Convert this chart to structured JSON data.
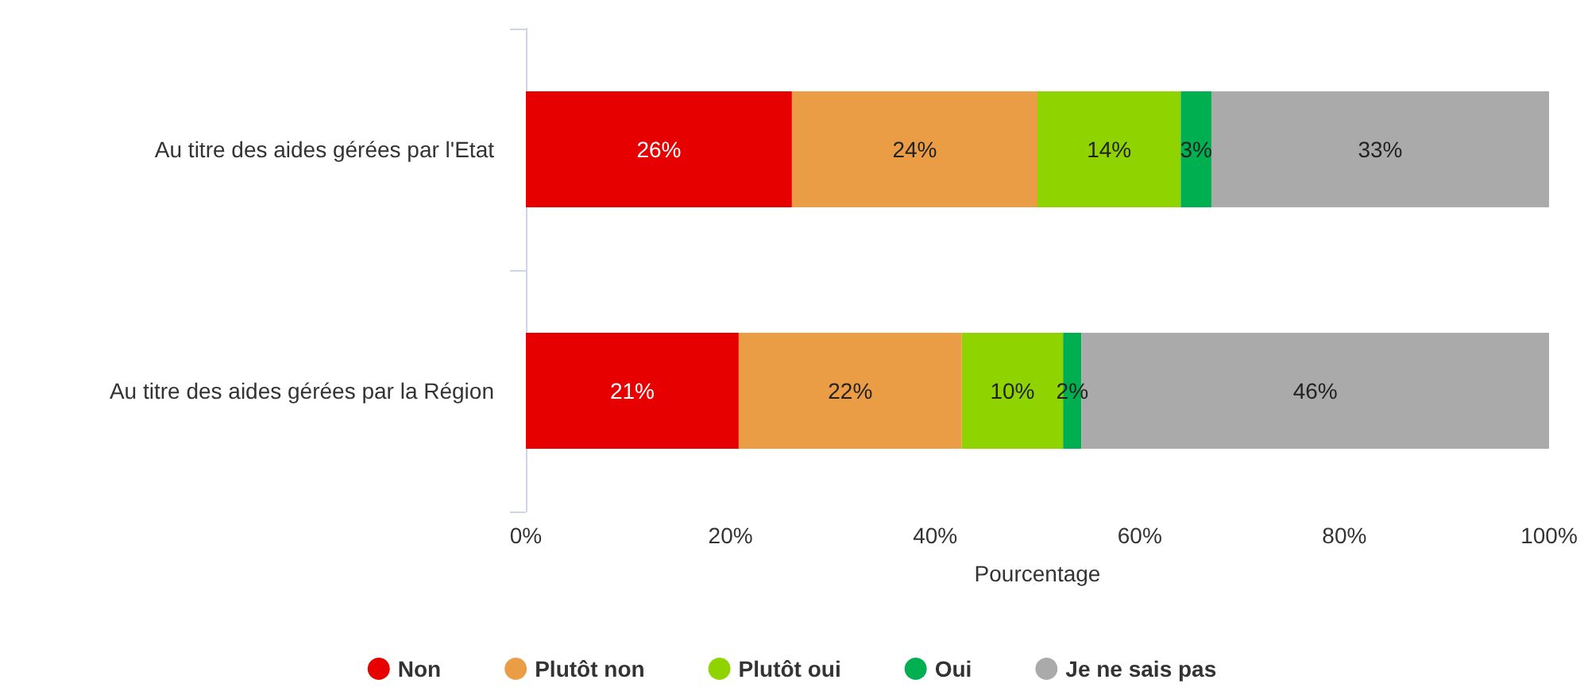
{
  "chart_data": {
    "type": "bar",
    "orientation": "horizontal",
    "stacked": true,
    "xlabel": "Pourcentage",
    "categories": [
      "Au titre des aides gérées par l'Etat",
      "Au titre des aides gérées par la Région"
    ],
    "series": [
      {
        "name": "Non",
        "color": "#e60000",
        "values": [
          26,
          20.8
        ],
        "value_labels": [
          "26%",
          "21%"
        ]
      },
      {
        "name": "Plutôt non",
        "color": "#eb9d46",
        "values": [
          24,
          21.8
        ],
        "value_labels": [
          "24%",
          "22%"
        ]
      },
      {
        "name": "Plutôt oui",
        "color": "#8fd400",
        "values": [
          14,
          9.9
        ],
        "value_labels": [
          "14%",
          "10%"
        ]
      },
      {
        "name": "Oui",
        "color": "#00b050",
        "values": [
          3,
          1.8
        ],
        "value_labels": [
          "3%",
          "2%"
        ]
      },
      {
        "name": "Je ne sais pas",
        "color": "#aaaaaa",
        "values": [
          33,
          45.7
        ],
        "value_labels": [
          "33%",
          "46%"
        ]
      }
    ],
    "xlim": [
      0,
      100
    ],
    "xticks": [
      {
        "value": 0,
        "label": "0%"
      },
      {
        "value": 20,
        "label": "20%"
      },
      {
        "value": 40,
        "label": "40%"
      },
      {
        "value": 60,
        "label": "60%"
      },
      {
        "value": 80,
        "label": "80%"
      },
      {
        "value": 100,
        "label": "100%"
      }
    ],
    "grid": false,
    "legend": "bottom"
  }
}
